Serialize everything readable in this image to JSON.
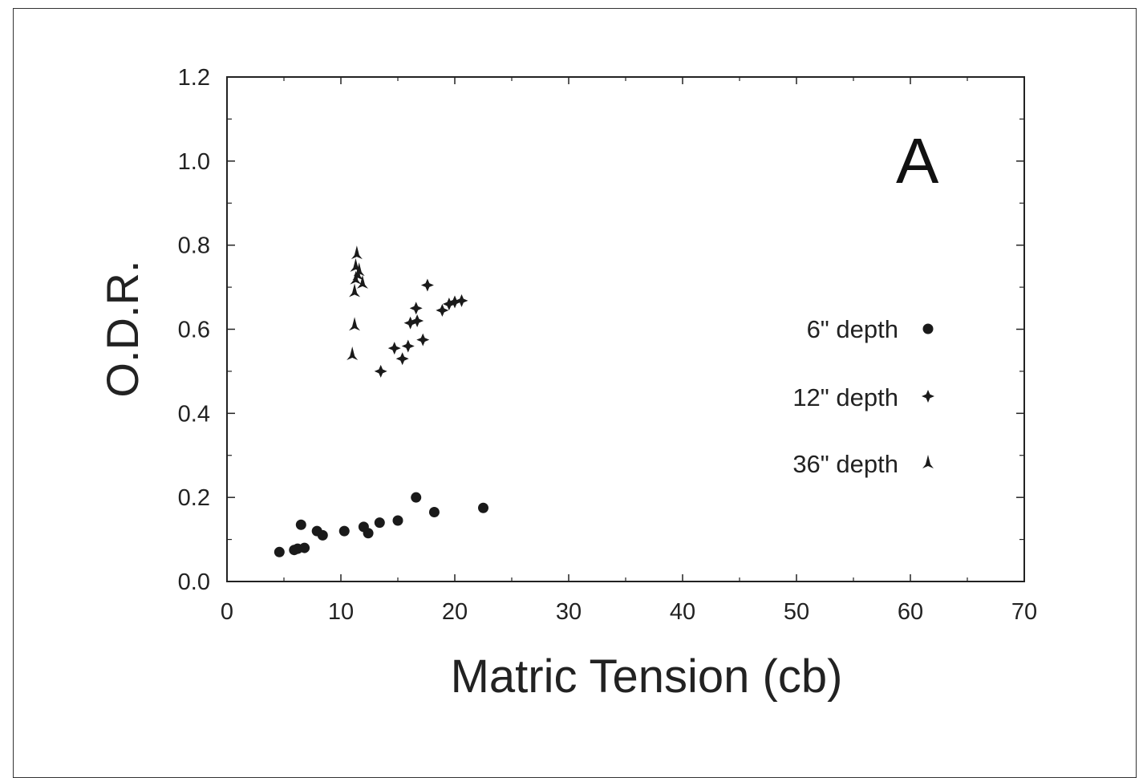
{
  "chart_data": {
    "type": "scatter",
    "xlabel": "Matric Tension (cb)",
    "ylabel": "O.D.R.",
    "xlim": [
      0,
      70
    ],
    "ylim": [
      0.0,
      1.2
    ],
    "x_ticks": [
      "0",
      "10",
      "20",
      "30",
      "40",
      "50",
      "60",
      "70"
    ],
    "y_ticks": [
      "0.0",
      "0.2",
      "0.4",
      "0.6",
      "0.8",
      "1.0",
      "1.2"
    ],
    "annotation": "A",
    "grid": false,
    "legend_position": "right",
    "series": [
      {
        "name": "6\" depth",
        "marker": "circle",
        "points": [
          [
            4.6,
            0.07
          ],
          [
            5.9,
            0.075
          ],
          [
            6.2,
            0.078
          ],
          [
            6.5,
            0.135
          ],
          [
            6.8,
            0.08
          ],
          [
            7.9,
            0.12
          ],
          [
            8.4,
            0.11
          ],
          [
            10.3,
            0.12
          ],
          [
            12.0,
            0.13
          ],
          [
            12.4,
            0.115
          ],
          [
            13.4,
            0.14
          ],
          [
            15.0,
            0.145
          ],
          [
            16.6,
            0.2
          ],
          [
            18.2,
            0.165
          ],
          [
            22.5,
            0.175
          ]
        ]
      },
      {
        "name": "12\" depth",
        "marker": "star",
        "points": [
          [
            13.5,
            0.5
          ],
          [
            14.7,
            0.555
          ],
          [
            15.4,
            0.53
          ],
          [
            15.9,
            0.56
          ],
          [
            16.1,
            0.615
          ],
          [
            16.7,
            0.62
          ],
          [
            16.6,
            0.65
          ],
          [
            17.2,
            0.575
          ],
          [
            17.6,
            0.705
          ],
          [
            18.9,
            0.645
          ],
          [
            19.5,
            0.66
          ],
          [
            20.0,
            0.665
          ],
          [
            20.6,
            0.668
          ]
        ]
      },
      {
        "name": "36\" depth",
        "marker": "triangle",
        "points": [
          [
            11.0,
            0.54
          ],
          [
            11.2,
            0.61
          ],
          [
            11.2,
            0.69
          ],
          [
            11.3,
            0.72
          ],
          [
            11.5,
            0.73
          ],
          [
            11.3,
            0.75
          ],
          [
            11.4,
            0.78
          ],
          [
            11.6,
            0.74
          ],
          [
            11.9,
            0.71
          ]
        ]
      }
    ]
  }
}
